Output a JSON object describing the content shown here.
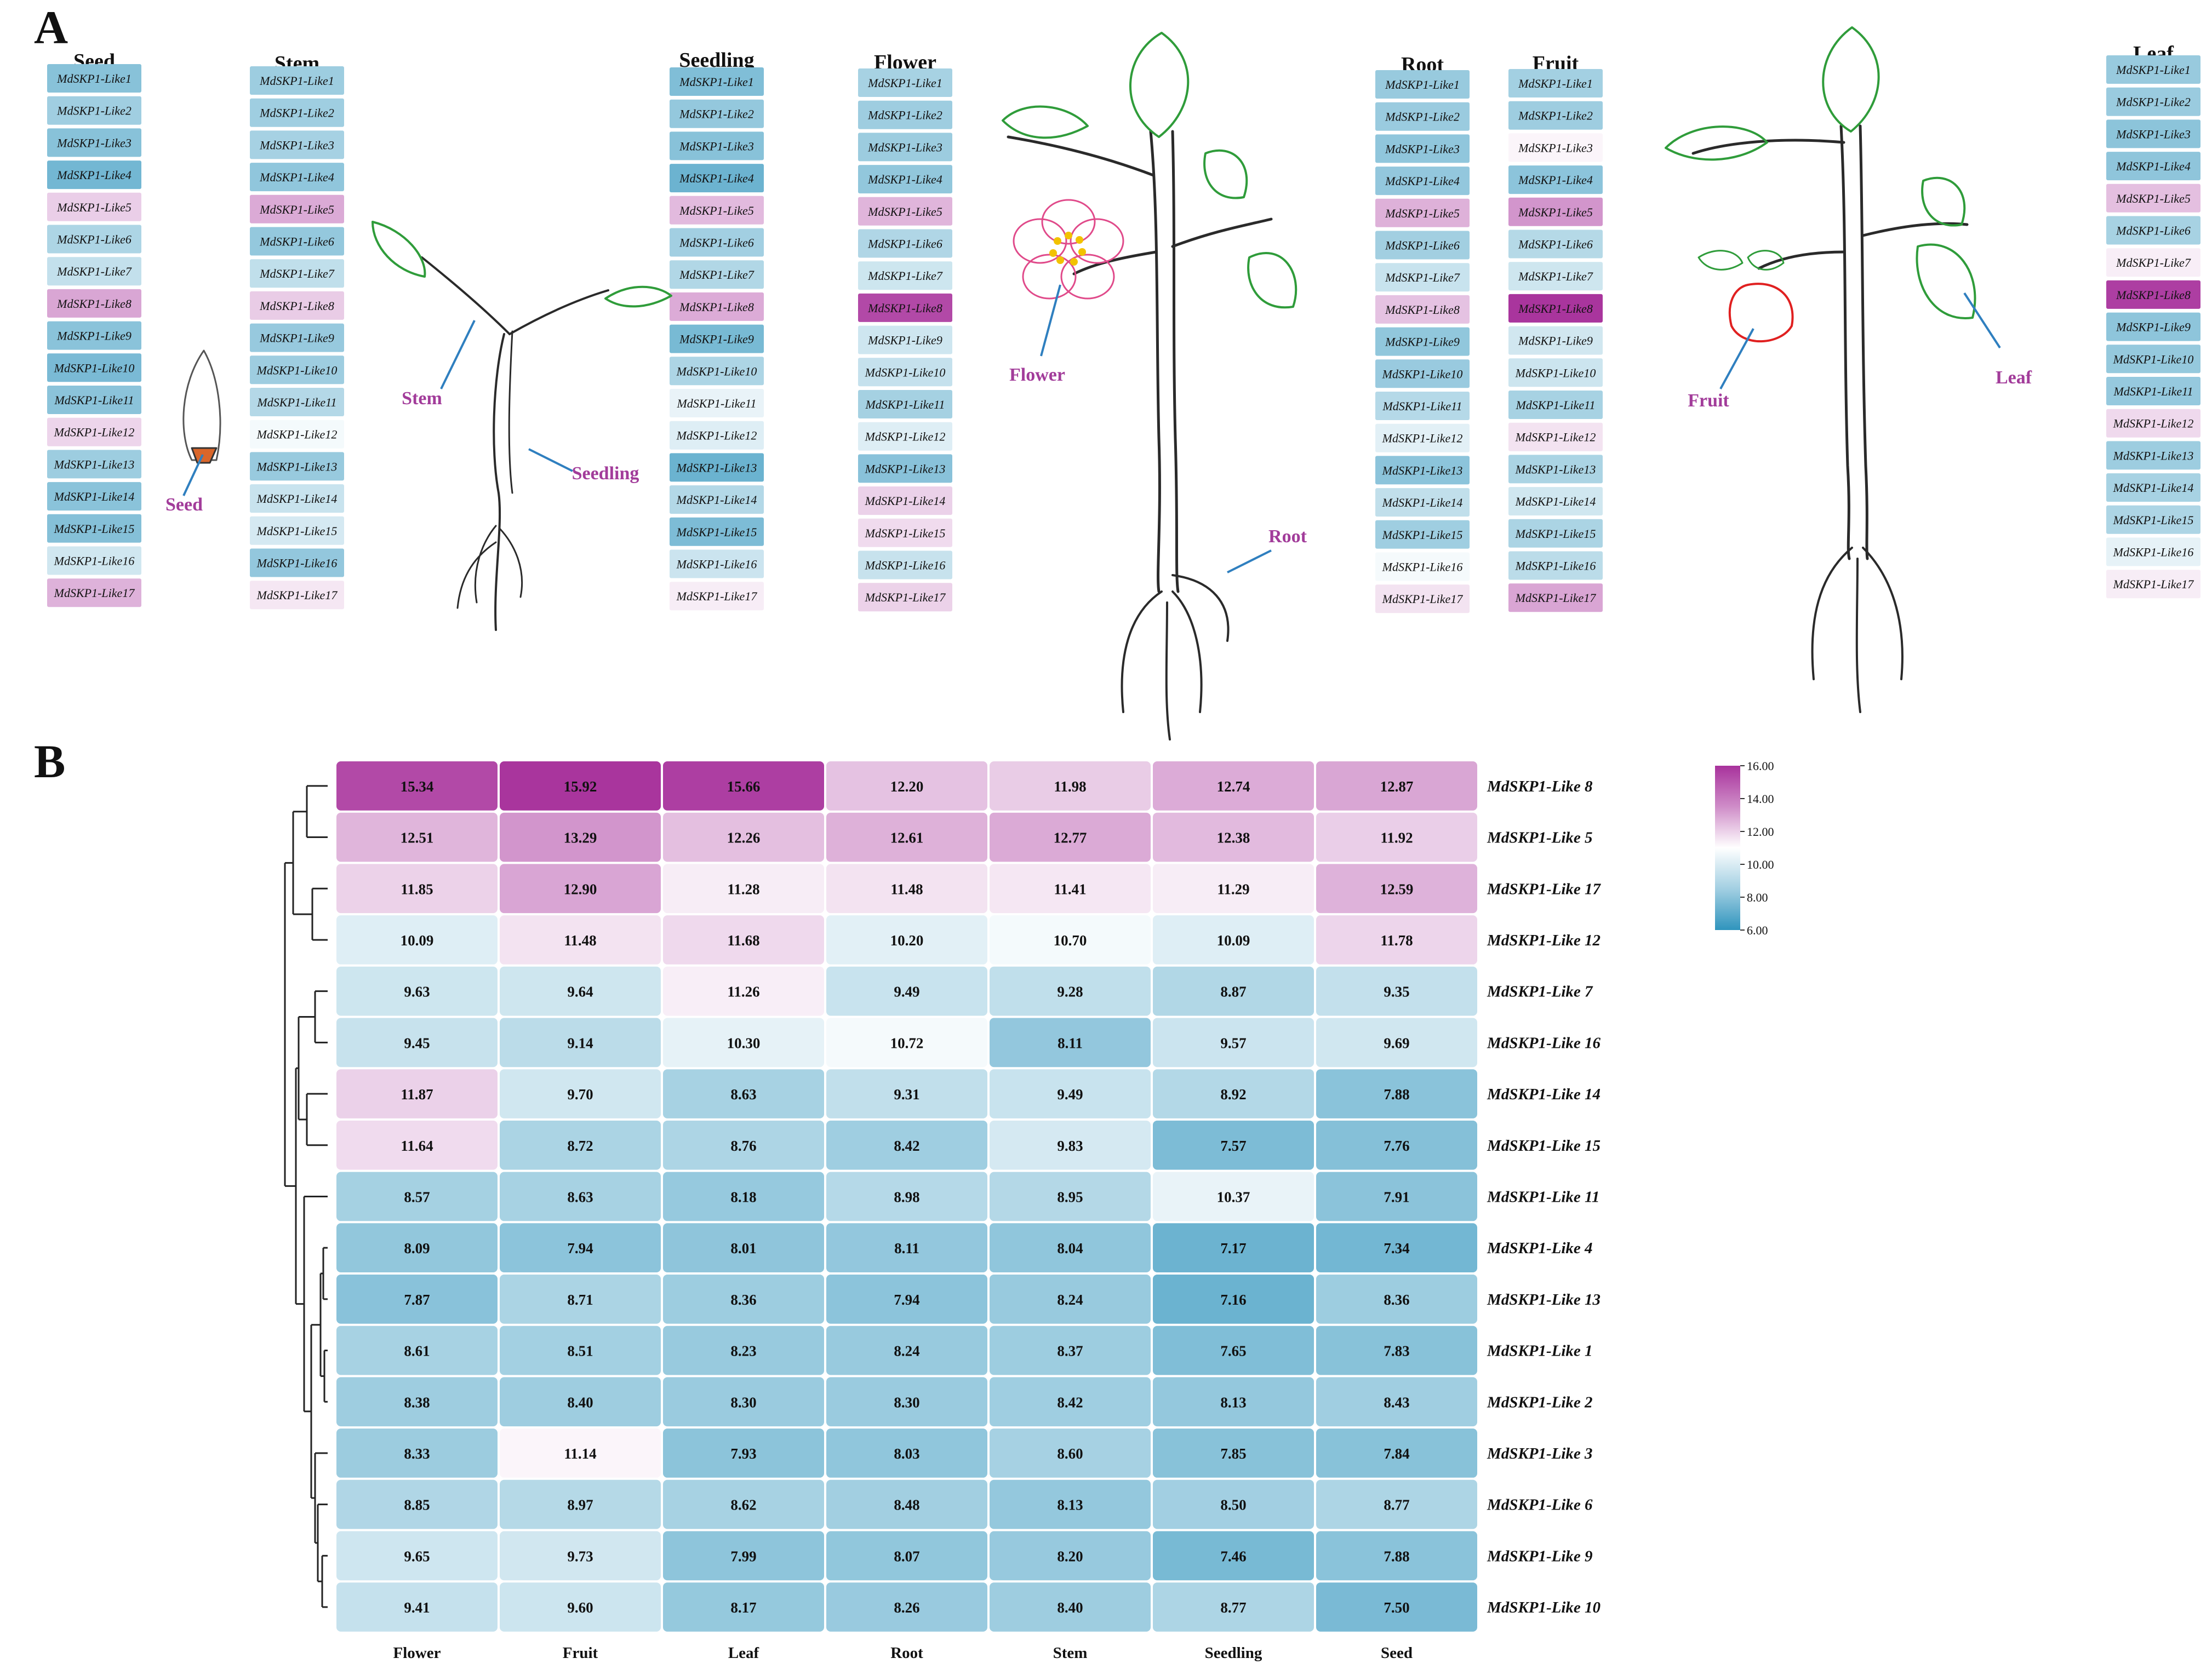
{
  "panel_labels": [
    "A",
    "B"
  ],
  "panelA": {
    "columns": [
      {
        "tissue": "Seed",
        "genes": [
          "MdSKP1-Like1",
          "MdSKP1-Like2",
          "MdSKP1-Like3",
          "MdSKP1-Like4",
          "MdSKP1-Like5",
          "MdSKP1-Like6",
          "MdSKP1-Like7",
          "MdSKP1-Like8",
          "MdSKP1-Like9",
          "MdSKP1-Like10",
          "MdSKP1-Like11",
          "MdSKP1-Like12",
          "MdSKP1-Like13",
          "MdSKP1-Like14",
          "MdSKP1-Like15",
          "MdSKP1-Like16",
          "MdSKP1-Like17"
        ]
      },
      {
        "tissue": "Stem",
        "genes": [
          "MdSKP1-Like1",
          "MdSKP1-Like2",
          "MdSKP1-Like3",
          "MdSKP1-Like4",
          "MdSKP1-Like5",
          "MdSKP1-Like6",
          "MdSKP1-Like7",
          "MdSKP1-Like8",
          "MdSKP1-Like9",
          "MdSKP1-Like10",
          "MdSKP1-Like11",
          "MdSKP1-Like12",
          "MdSKP1-Like13",
          "MdSKP1-Like14",
          "MdSKP1-Like15",
          "MdSKP1-Like16",
          "MdSKP1-Like17"
        ]
      },
      {
        "tissue": "Seedling",
        "genes": [
          "MdSKP1-Like1",
          "MdSKP1-Like2",
          "MdSKP1-Like3",
          "MdSKP1-Like4",
          "MdSKP1-Like5",
          "MdSKP1-Like6",
          "MdSKP1-Like7",
          "MdSKP1-Like8",
          "MdSKP1-Like9",
          "MdSKP1-Like10",
          "MdSKP1-Like11",
          "MdSKP1-Like12",
          "MdSKP1-Like13",
          "MdSKP1-Like14",
          "MdSKP1-Like15",
          "MdSKP1-Like16",
          "MdSKP1-Like17"
        ]
      },
      {
        "tissue": "Flower",
        "genes": [
          "MdSKP1-Like1",
          "MdSKP1-Like2",
          "MdSKP1-Like3",
          "MdSKP1-Like4",
          "MdSKP1-Like5",
          "MdSKP1-Like6",
          "MdSKP1-Like7",
          "MdSKP1-Like8",
          "MdSKP1-Like9",
          "MdSKP1-Like10",
          "MdSKP1-Like11",
          "MdSKP1-Like12",
          "MdSKP1-Like13",
          "MdSKP1-Like14",
          "MdSKP1-Like15",
          "MdSKP1-Like16",
          "MdSKP1-Like17"
        ]
      },
      {
        "tissue": "Root",
        "genes": [
          "MdSKP1-Like1",
          "MdSKP1-Like2",
          "MdSKP1-Like3",
          "MdSKP1-Like4",
          "MdSKP1-Like5",
          "MdSKP1-Like6",
          "MdSKP1-Like7",
          "MdSKP1-Like8",
          "MdSKP1-Like9",
          "MdSKP1-Like10",
          "MdSKP1-Like11",
          "MdSKP1-Like12",
          "MdSKP1-Like13",
          "MdSKP1-Like14",
          "MdSKP1-Like15",
          "MdSKP1-Like16",
          "MdSKP1-Like17"
        ]
      },
      {
        "tissue": "Fruit",
        "genes": [
          "MdSKP1-Like1",
          "MdSKP1-Like2",
          "MdSKP1-Like3",
          "MdSKP1-Like4",
          "MdSKP1-Like5",
          "MdSKP1-Like6",
          "MdSKP1-Like7",
          "MdSKP1-Like8",
          "MdSKP1-Like9",
          "MdSKP1-Like10",
          "MdSKP1-Like11",
          "MdSKP1-Like12",
          "MdSKP1-Like13",
          "MdSKP1-Like14",
          "MdSKP1-Like15",
          "MdSKP1-Like16",
          "MdSKP1-Like17"
        ]
      },
      {
        "tissue": "Leaf",
        "genes": [
          "MdSKP1-Like1",
          "MdSKP1-Like2",
          "MdSKP1-Like3",
          "MdSKP1-Like4",
          "MdSKP1-Like5",
          "MdSKP1-Like6",
          "MdSKP1-Like7",
          "MdSKP1-Like8",
          "MdSKP1-Like9",
          "MdSKP1-Like10",
          "MdSKP1-Like11",
          "MdSKP1-Like12",
          "MdSKP1-Like13",
          "MdSKP1-Like14",
          "MdSKP1-Like15",
          "MdSKP1-Like16",
          "MdSKP1-Like17"
        ]
      }
    ],
    "illustration_labels": [
      "Seed",
      "Stem",
      "Seedling",
      "Flower",
      "Root",
      "Fruit",
      "Leaf"
    ],
    "colors": {
      "label": "#a23c9a",
      "pointer": "#2f7fbf",
      "leaf": "#2f9c3a",
      "stem": "#2a2a2a",
      "flower": "#e04a8a",
      "fruit": "#e02020",
      "seed": "#d9662a"
    }
  },
  "chart_data": {
    "type": "heatmap",
    "columns": [
      "Flower",
      "Fruit",
      "Leaf",
      "Root",
      "Stem",
      "Seedling",
      "Seed"
    ],
    "rows": [
      "MdSKP1-Like 8",
      "MdSKP1-Like 5",
      "MdSKP1-Like 17",
      "MdSKP1-Like 12",
      "MdSKP1-Like 7",
      "MdSKP1-Like 16",
      "MdSKP1-Like 14",
      "MdSKP1-Like 15",
      "MdSKP1-Like 11",
      "MdSKP1-Like 4",
      "MdSKP1-Like 13",
      "MdSKP1-Like 1",
      "MdSKP1-Like 2",
      "MdSKP1-Like 3",
      "MdSKP1-Like 6",
      "MdSKP1-Like 9",
      "MdSKP1-Like 10"
    ],
    "values": [
      [
        15.34,
        15.92,
        15.66,
        12.2,
        11.98,
        12.74,
        12.87
      ],
      [
        12.51,
        13.29,
        12.26,
        12.61,
        12.77,
        12.38,
        11.92
      ],
      [
        11.85,
        12.9,
        11.28,
        11.48,
        11.41,
        11.29,
        12.59
      ],
      [
        10.09,
        11.48,
        11.68,
        10.2,
        10.7,
        10.09,
        11.78
      ],
      [
        9.63,
        9.64,
        11.26,
        9.49,
        9.28,
        8.87,
        9.35
      ],
      [
        9.45,
        9.14,
        10.3,
        10.72,
        8.11,
        9.57,
        9.69
      ],
      [
        11.87,
        9.7,
        8.63,
        9.31,
        9.49,
        8.92,
        7.88
      ],
      [
        11.64,
        8.72,
        8.76,
        8.42,
        9.83,
        7.57,
        7.76
      ],
      [
        8.57,
        8.63,
        8.18,
        8.98,
        8.95,
        10.37,
        7.91
      ],
      [
        8.09,
        7.94,
        8.01,
        8.11,
        8.04,
        7.17,
        7.34
      ],
      [
        7.87,
        8.71,
        8.36,
        7.94,
        8.24,
        7.16,
        8.36
      ],
      [
        8.61,
        8.51,
        8.23,
        8.24,
        8.37,
        7.65,
        7.83
      ],
      [
        8.38,
        8.4,
        8.3,
        8.3,
        8.42,
        8.13,
        8.43
      ],
      [
        8.33,
        11.14,
        7.93,
        8.03,
        8.6,
        7.85,
        7.84
      ],
      [
        8.85,
        8.97,
        8.62,
        8.48,
        8.13,
        8.5,
        8.77
      ],
      [
        9.65,
        9.73,
        7.99,
        8.07,
        8.2,
        7.46,
        7.88
      ],
      [
        9.41,
        9.6,
        8.17,
        8.26,
        8.4,
        8.77,
        7.5
      ]
    ],
    "colorbar": {
      "min": 6.0,
      "max": 16.0,
      "ticks": [
        "16.00",
        "14.00",
        "12.00",
        "10.00",
        "8.00",
        "6.00"
      ]
    },
    "colorscale": [
      "#2f94bd",
      "#ffffff",
      "#a8329c"
    ]
  }
}
